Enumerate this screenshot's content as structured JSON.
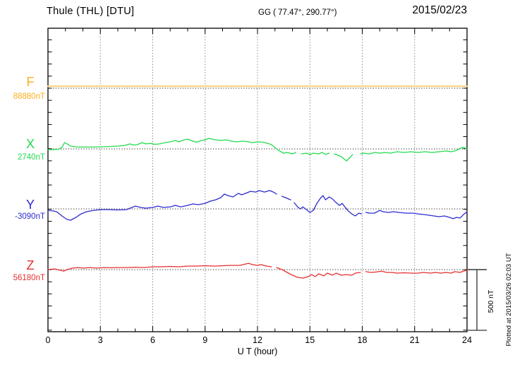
{
  "header": {
    "title": "Thule (THL)  [DTU]",
    "coordinates": "GG ( 77.47°, 290.77°)",
    "date": "2015/02/23"
  },
  "footer": {
    "plotted_at": "Plotted at 2015/03/26 02:03 UT"
  },
  "axis": {
    "xlabel": "U T (hour)",
    "x_tick_labels": [
      "0",
      "3",
      "6",
      "9",
      "12",
      "15",
      "18",
      "21",
      "24"
    ]
  },
  "colors": {
    "background": "#FFFFFF",
    "frame": "#000000",
    "grid": "#7A7A7A",
    "baseline": "#222222"
  },
  "chart_data": {
    "type": "line",
    "title": "Thule (THL) [DTU] magnetogram, 2015/02/23",
    "xlabel": "U T (hour)",
    "x_range": [
      0,
      24
    ],
    "x_ticks_hours": [
      0,
      3,
      6,
      9,
      12,
      15,
      18,
      21,
      24
    ],
    "x_minor_tick_step_hours": 1,
    "y_units": "nT offset from component baseline value",
    "scale_bar": {
      "label": "500 nT",
      "nT": 500
    },
    "grid": "vertical dotted gridlines every 3 h; dotted horizontal baseline per component",
    "legend_position": "left margin, one colored label per stacked component",
    "series": [
      {
        "name": "F",
        "label": "F",
        "value_label": "88880nT",
        "baseline_nT": 88880,
        "color": "#FFAD1F",
        "line_color": "#FFD584",
        "points": [
          [
            0,
            17
          ],
          [
            24,
            17
          ]
        ]
      },
      {
        "name": "X",
        "label": "X",
        "value_label": "2740nT",
        "baseline_nT": 2740,
        "color": "#22DB4E",
        "points": [
          [
            0,
            -6
          ],
          [
            0.3,
            -6
          ],
          [
            0.6,
            -3
          ],
          [
            0.8,
            12
          ],
          [
            0.95,
            52
          ],
          [
            1.1,
            41
          ],
          [
            1.3,
            23
          ],
          [
            1.6,
            17
          ],
          [
            2,
            15
          ],
          [
            2.5,
            15
          ],
          [
            3,
            17
          ],
          [
            3.5,
            20
          ],
          [
            4,
            23
          ],
          [
            4.4,
            29
          ],
          [
            4.7,
            41
          ],
          [
            4.9,
            32
          ],
          [
            5.1,
            35
          ],
          [
            5.4,
            52
          ],
          [
            5.6,
            41
          ],
          [
            5.9,
            46
          ],
          [
            6.1,
            38
          ],
          [
            6.4,
            41
          ],
          [
            6.7,
            52
          ],
          [
            7,
            58
          ],
          [
            7.3,
            70
          ],
          [
            7.5,
            58
          ],
          [
            7.8,
            75
          ],
          [
            8,
            81
          ],
          [
            8.2,
            70
          ],
          [
            8.5,
            55
          ],
          [
            8.8,
            70
          ],
          [
            9,
            75
          ],
          [
            9.2,
            87
          ],
          [
            9.4,
            81
          ],
          [
            9.6,
            75
          ],
          [
            9.9,
            70
          ],
          [
            10.2,
            75
          ],
          [
            10.5,
            64
          ],
          [
            10.8,
            58
          ],
          [
            11.1,
            64
          ],
          [
            11.4,
            61
          ],
          [
            11.7,
            52
          ],
          [
            12,
            58
          ],
          [
            12.3,
            55
          ],
          [
            12.6,
            46
          ],
          [
            12.8,
            35
          ],
          [
            13,
            12
          ],
          [
            13.2,
            -12
          ],
          [
            13.35,
            -23
          ],
          [
            13.5,
            -35
          ],
          [
            13.7,
            -29
          ],
          [
            14,
            -41
          ],
          [
            14.2,
            -29
          ],
          "gap",
          [
            14.5,
            -41
          ],
          [
            14.8,
            -35
          ],
          [
            15,
            -46
          ],
          [
            15.2,
            -35
          ],
          [
            15.5,
            -41
          ],
          [
            15.7,
            -29
          ],
          [
            15.9,
            -46
          ],
          [
            16.1,
            -35
          ],
          "gap",
          [
            16.4,
            -41
          ],
          [
            16.6,
            -52
          ],
          [
            16.8,
            -64
          ],
          [
            17.1,
            -99
          ],
          [
            17.3,
            -70
          ],
          [
            17.45,
            -46
          ],
          "gap",
          [
            17.9,
            -41
          ],
          [
            18.1,
            -35
          ],
          [
            18.4,
            -41
          ],
          [
            18.7,
            -29
          ],
          [
            19,
            -35
          ],
          [
            19.3,
            -29
          ],
          [
            19.6,
            -35
          ],
          [
            20,
            -23
          ],
          [
            20.4,
            -29
          ],
          [
            20.8,
            -23
          ],
          [
            21.2,
            -29
          ],
          [
            21.6,
            -23
          ],
          [
            22,
            -29
          ],
          [
            22.4,
            -23
          ],
          [
            22.8,
            -17
          ],
          [
            23.1,
            -23
          ],
          [
            23.4,
            -12
          ],
          [
            23.6,
            6
          ],
          [
            23.8,
            12
          ],
          [
            24,
            0
          ]
        ]
      },
      {
        "name": "Y",
        "label": "Y",
        "value_label": "-3090nT",
        "baseline_nT": -3090,
        "color": "#2B2BD0",
        "points": [
          [
            0,
            -12
          ],
          [
            0.3,
            -17
          ],
          [
            0.5,
            -23
          ],
          [
            0.8,
            -58
          ],
          [
            1.1,
            -87
          ],
          [
            1.3,
            -93
          ],
          [
            1.6,
            -70
          ],
          [
            1.9,
            -41
          ],
          [
            2.2,
            -23
          ],
          [
            2.6,
            -12
          ],
          [
            3,
            -6
          ],
          [
            3.5,
            -6
          ],
          [
            4,
            -9
          ],
          [
            4.5,
            -6
          ],
          [
            5,
            23
          ],
          [
            5.3,
            12
          ],
          [
            5.6,
            6
          ],
          [
            6,
            12
          ],
          [
            6.3,
            23
          ],
          [
            6.6,
            12
          ],
          [
            7,
            17
          ],
          [
            7.3,
            29
          ],
          [
            7.6,
            17
          ],
          [
            8,
            29
          ],
          [
            8.3,
            41
          ],
          [
            8.6,
            35
          ],
          [
            9,
            46
          ],
          [
            9.3,
            64
          ],
          [
            9.6,
            75
          ],
          [
            9.9,
            93
          ],
          [
            10.1,
            122
          ],
          [
            10.3,
            110
          ],
          [
            10.6,
            99
          ],
          [
            10.9,
            128
          ],
          [
            11.1,
            116
          ],
          [
            11.4,
            133
          ],
          [
            11.6,
            145
          ],
          [
            11.9,
            139
          ],
          [
            12.1,
            151
          ],
          [
            12.4,
            139
          ],
          [
            12.7,
            151
          ],
          [
            12.9,
            139
          ],
          [
            13.1,
            122
          ],
          "gap",
          [
            13.4,
            104
          ],
          [
            13.6,
            93
          ],
          [
            13.9,
            75
          ],
          "gap",
          [
            14.1,
            52
          ],
          [
            14.3,
            17
          ],
          [
            14.45,
            0
          ],
          [
            14.6,
            17
          ],
          [
            14.8,
            -6
          ],
          [
            15,
            -29
          ],
          [
            15.2,
            -12
          ],
          [
            15.4,
            46
          ],
          [
            15.6,
            87
          ],
          [
            15.75,
            110
          ],
          [
            15.9,
            75
          ],
          [
            16.1,
            99
          ],
          [
            16.3,
            81
          ],
          [
            16.5,
            52
          ],
          [
            16.7,
            29
          ],
          [
            16.85,
            46
          ],
          [
            17,
            17
          ],
          [
            17.2,
            -17
          ],
          [
            17.4,
            -41
          ],
          [
            17.6,
            -58
          ],
          [
            17.8,
            -35
          ],
          [
            17.95,
            -41
          ],
          "gap",
          [
            18.2,
            -29
          ],
          [
            18.4,
            -35
          ],
          [
            18.7,
            -35
          ],
          [
            19,
            -12
          ],
          [
            19.2,
            -23
          ],
          [
            19.5,
            -29
          ],
          [
            19.8,
            -23
          ],
          [
            20.1,
            -29
          ],
          [
            20.5,
            -35
          ],
          [
            20.9,
            -35
          ],
          [
            21.2,
            -41
          ],
          [
            21.5,
            -46
          ],
          [
            21.8,
            -52
          ],
          [
            22.1,
            -58
          ],
          [
            22.4,
            -64
          ],
          [
            22.7,
            -58
          ],
          [
            23,
            -70
          ],
          [
            23.2,
            -81
          ],
          [
            23.4,
            -70
          ],
          [
            23.6,
            -75
          ],
          [
            23.8,
            -46
          ],
          [
            24,
            -23
          ]
        ]
      },
      {
        "name": "Z",
        "label": "Z",
        "value_label": "56180nT",
        "baseline_nT": 56180,
        "color": "#E62E2E",
        "points": [
          [
            0,
            0
          ],
          [
            0.4,
            6
          ],
          [
            0.7,
            -6
          ],
          [
            0.9,
            -12
          ],
          [
            1.1,
            0
          ],
          [
            1.4,
            12
          ],
          [
            1.7,
            17
          ],
          [
            2,
            12
          ],
          [
            2.4,
            17
          ],
          [
            2.8,
            12
          ],
          [
            3.2,
            17
          ],
          [
            3.6,
            15
          ],
          [
            4,
            17
          ],
          [
            4.5,
            17
          ],
          [
            5,
            20
          ],
          [
            5.5,
            17
          ],
          [
            6,
            23
          ],
          [
            6.5,
            23
          ],
          [
            7,
            26
          ],
          [
            7.5,
            23
          ],
          [
            8,
            29
          ],
          [
            8.5,
            29
          ],
          [
            9,
            32
          ],
          [
            9.5,
            29
          ],
          [
            10,
            32
          ],
          [
            10.5,
            35
          ],
          [
            11,
            35
          ],
          [
            11.3,
            46
          ],
          [
            11.5,
            52
          ],
          [
            11.7,
            41
          ],
          [
            12,
            35
          ],
          [
            12.2,
            41
          ],
          [
            12.5,
            29
          ],
          [
            12.8,
            23
          ],
          "gap",
          [
            13.1,
            17
          ],
          [
            13.4,
            0
          ],
          [
            13.7,
            -23
          ],
          [
            14,
            -46
          ],
          [
            14.3,
            -64
          ],
          [
            14.6,
            -70
          ],
          [
            14.9,
            -58
          ],
          [
            15.1,
            -41
          ],
          [
            15.3,
            -58
          ],
          [
            15.5,
            -35
          ],
          [
            15.8,
            -52
          ],
          [
            16,
            -29
          ],
          [
            16.3,
            -46
          ],
          [
            16.5,
            -29
          ],
          [
            16.8,
            -46
          ],
          [
            17.1,
            -41
          ],
          [
            17.4,
            -46
          ],
          [
            17.6,
            -29
          ],
          [
            17.9,
            -23
          ],
          "gap",
          [
            18.2,
            -17
          ],
          [
            18.5,
            -23
          ],
          [
            18.8,
            -20
          ],
          [
            19.1,
            -12
          ],
          [
            19.4,
            -23
          ],
          [
            19.7,
            -23
          ],
          [
            20,
            -29
          ],
          [
            20.4,
            -26
          ],
          [
            20.8,
            -29
          ],
          [
            21.2,
            -29
          ],
          [
            21.5,
            -23
          ],
          [
            21.9,
            -29
          ],
          [
            22.2,
            -23
          ],
          [
            22.5,
            -29
          ],
          [
            22.8,
            -23
          ],
          [
            23.1,
            -29
          ],
          [
            23.3,
            -17
          ],
          [
            23.6,
            -23
          ],
          [
            23.8,
            -12
          ],
          [
            24,
            -6
          ]
        ]
      }
    ]
  }
}
